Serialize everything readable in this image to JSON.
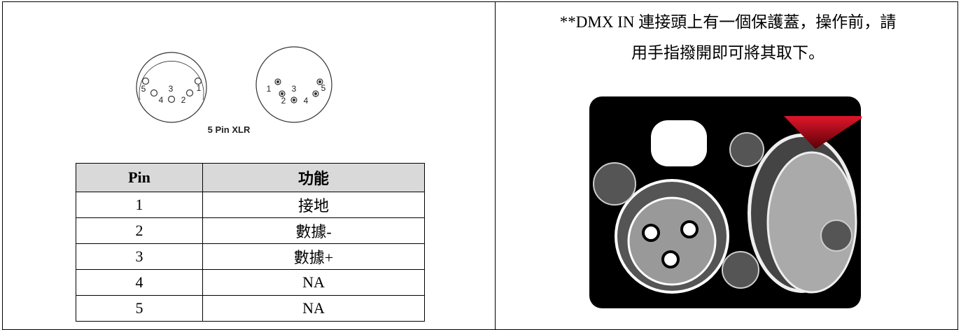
{
  "diagram": {
    "caption": "5 Pin XLR",
    "female_pins": [
      "5",
      "3",
      "1",
      "4",
      "2"
    ],
    "male_pins": [
      "1",
      "3",
      "5",
      "2",
      "4"
    ]
  },
  "table": {
    "headers": [
      "Pin",
      "功能"
    ],
    "rows": [
      [
        "1",
        "接地"
      ],
      [
        "2",
        "數據-"
      ],
      [
        "3",
        "數據+"
      ],
      [
        "4",
        "NA"
      ],
      [
        "5",
        "NA"
      ]
    ]
  },
  "note": {
    "lines": [
      "**DMX IN 連接頭上有一個保護蓋，操作前，請",
      "用手指撥開即可將其取下。"
    ]
  }
}
